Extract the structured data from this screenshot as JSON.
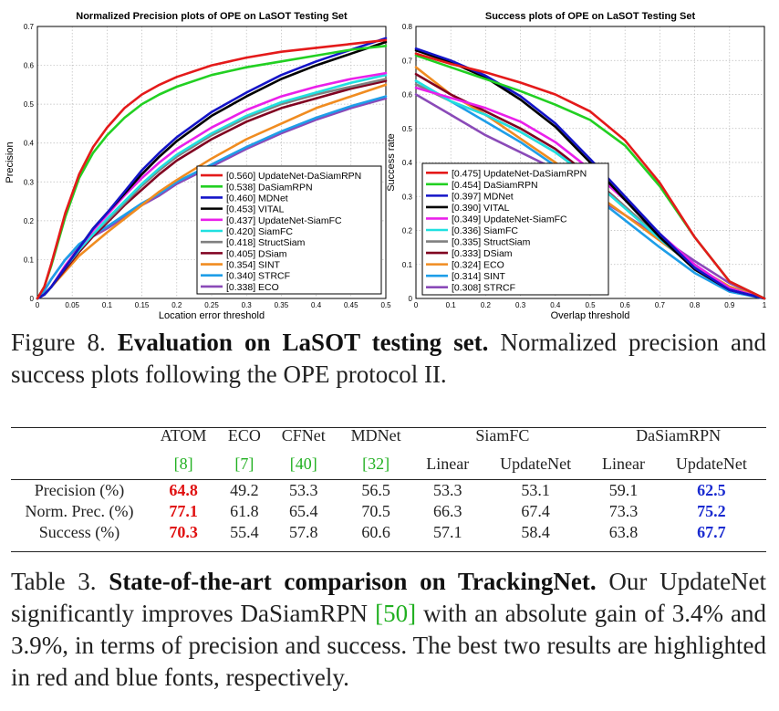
{
  "chart_data": [
    {
      "type": "line",
      "title": "Normalized Precision plots of OPE on LaSOT Testing Set",
      "xlabel": "Location error threshold",
      "ylabel": "Precision",
      "xlim": [
        0,
        0.5
      ],
      "ylim": [
        0,
        0.7
      ],
      "xticks": [
        "0",
        "0.05",
        "0.1",
        "0.15",
        "0.2",
        "0.25",
        "0.3",
        "0.35",
        "0.4",
        "0.45",
        "0.5"
      ],
      "yticks": [
        "0",
        "0.1",
        "0.2",
        "0.3",
        "0.4",
        "0.5",
        "0.6",
        "0.7"
      ],
      "grid": true,
      "legend_position": "bottom-right",
      "x": [
        0,
        0.01,
        0.02,
        0.04,
        0.06,
        0.08,
        0.1,
        0.125,
        0.15,
        0.175,
        0.2,
        0.25,
        0.3,
        0.35,
        0.4,
        0.45,
        0.5
      ],
      "series": [
        {
          "name": "[0.560] UpdateNet-DaSiamRPN",
          "color": "#e41a1a",
          "values": [
            0,
            0.03,
            0.09,
            0.22,
            0.32,
            0.39,
            0.44,
            0.49,
            0.525,
            0.55,
            0.57,
            0.6,
            0.62,
            0.635,
            0.645,
            0.655,
            0.665
          ]
        },
        {
          "name": "[0.538] DaSiamRPN",
          "color": "#22d022",
          "values": [
            0,
            0.03,
            0.085,
            0.21,
            0.31,
            0.375,
            0.42,
            0.465,
            0.5,
            0.525,
            0.545,
            0.575,
            0.595,
            0.61,
            0.625,
            0.64,
            0.65
          ]
        },
        {
          "name": "[0.460] MDNet",
          "color": "#1414c8",
          "values": [
            0,
            0.01,
            0.03,
            0.08,
            0.13,
            0.18,
            0.22,
            0.275,
            0.33,
            0.375,
            0.415,
            0.48,
            0.53,
            0.575,
            0.61,
            0.64,
            0.67
          ]
        },
        {
          "name": "[0.453] VITAL",
          "color": "#000000",
          "values": [
            0,
            0.01,
            0.03,
            0.08,
            0.13,
            0.18,
            0.22,
            0.27,
            0.32,
            0.365,
            0.405,
            0.47,
            0.52,
            0.565,
            0.6,
            0.63,
            0.66
          ]
        },
        {
          "name": "[0.437] UpdateNet-SiamFC",
          "color": "#ea20ea",
          "values": [
            0,
            0.01,
            0.03,
            0.085,
            0.13,
            0.175,
            0.215,
            0.265,
            0.31,
            0.35,
            0.385,
            0.44,
            0.485,
            0.52,
            0.545,
            0.565,
            0.58
          ]
        },
        {
          "name": "[0.420] SiamFC",
          "color": "#20e0e0",
          "values": [
            0,
            0.01,
            0.03,
            0.08,
            0.125,
            0.165,
            0.205,
            0.25,
            0.295,
            0.335,
            0.37,
            0.425,
            0.47,
            0.505,
            0.53,
            0.555,
            0.575
          ]
        },
        {
          "name": "[0.418] StructSiam",
          "color": "#808080",
          "values": [
            0,
            0.01,
            0.03,
            0.08,
            0.125,
            0.165,
            0.2,
            0.245,
            0.29,
            0.33,
            0.365,
            0.42,
            0.465,
            0.5,
            0.525,
            0.545,
            0.565
          ]
        },
        {
          "name": "[0.405] DSiam",
          "color": "#800020",
          "values": [
            0,
            0.01,
            0.03,
            0.075,
            0.12,
            0.16,
            0.195,
            0.24,
            0.28,
            0.32,
            0.355,
            0.41,
            0.455,
            0.49,
            0.515,
            0.54,
            0.56
          ]
        },
        {
          "name": "[0.354] SINT",
          "color": "#f08c20",
          "values": [
            0,
            0.01,
            0.03,
            0.07,
            0.11,
            0.14,
            0.17,
            0.205,
            0.24,
            0.275,
            0.305,
            0.36,
            0.41,
            0.45,
            0.49,
            0.52,
            0.55
          ]
        },
        {
          "name": "[0.340] STRCF",
          "color": "#1e9ee8",
          "values": [
            0,
            0.02,
            0.05,
            0.1,
            0.14,
            0.165,
            0.185,
            0.215,
            0.245,
            0.27,
            0.3,
            0.345,
            0.39,
            0.43,
            0.465,
            0.495,
            0.52
          ]
        },
        {
          "name": "[0.338] ECO",
          "color": "#8a4ab8",
          "values": [
            0,
            0.02,
            0.05,
            0.1,
            0.135,
            0.16,
            0.18,
            0.21,
            0.24,
            0.265,
            0.295,
            0.34,
            0.385,
            0.425,
            0.46,
            0.49,
            0.515
          ]
        }
      ]
    },
    {
      "type": "line",
      "title": "Success plots of OPE on LaSOT Testing Set",
      "xlabel": "Overlap threshold",
      "ylabel": "Success rate",
      "xlim": [
        0,
        1
      ],
      "ylim": [
        0,
        0.8
      ],
      "xticks": [
        "0",
        "0.1",
        "0.2",
        "0.3",
        "0.4",
        "0.5",
        "0.6",
        "0.7",
        "0.8",
        "0.9",
        "1"
      ],
      "yticks": [
        "0",
        "0.1",
        "0.2",
        "0.3",
        "0.4",
        "0.5",
        "0.6",
        "0.7",
        "0.8"
      ],
      "grid": true,
      "legend_position": "bottom-left",
      "x": [
        0,
        0.1,
        0.2,
        0.3,
        0.4,
        0.5,
        0.6,
        0.7,
        0.8,
        0.9,
        1
      ],
      "series": [
        {
          "name": "[0.475] UpdateNet-DaSiamRPN",
          "color": "#e41a1a",
          "values": [
            0.72,
            0.69,
            0.665,
            0.635,
            0.6,
            0.55,
            0.465,
            0.34,
            0.18,
            0.05,
            0
          ]
        },
        {
          "name": "[0.454] DaSiamRPN",
          "color": "#22d022",
          "values": [
            0.715,
            0.68,
            0.645,
            0.61,
            0.57,
            0.525,
            0.45,
            0.33,
            0.18,
            0.05,
            0
          ]
        },
        {
          "name": "[0.397] MDNet",
          "color": "#1414c8",
          "values": [
            0.735,
            0.7,
            0.655,
            0.595,
            0.515,
            0.41,
            0.3,
            0.19,
            0.09,
            0.025,
            0
          ]
        },
        {
          "name": "[0.390] VITAL",
          "color": "#000000",
          "values": [
            0.73,
            0.695,
            0.65,
            0.585,
            0.505,
            0.4,
            0.29,
            0.18,
            0.085,
            0.025,
            0
          ]
        },
        {
          "name": "[0.349] UpdateNet-SiamFC",
          "color": "#ea20ea",
          "values": [
            0.62,
            0.59,
            0.56,
            0.52,
            0.46,
            0.38,
            0.29,
            0.19,
            0.1,
            0.03,
            0
          ]
        },
        {
          "name": "[0.336] SiamFC",
          "color": "#20e0e0",
          "values": [
            0.64,
            0.58,
            0.54,
            0.49,
            0.43,
            0.355,
            0.265,
            0.175,
            0.09,
            0.025,
            0
          ]
        },
        {
          "name": "[0.335] StructSiam",
          "color": "#808080",
          "values": [
            0.63,
            0.58,
            0.54,
            0.49,
            0.43,
            0.355,
            0.27,
            0.18,
            0.095,
            0.03,
            0
          ]
        },
        {
          "name": "[0.333] DSiam",
          "color": "#800020",
          "values": [
            0.66,
            0.6,
            0.55,
            0.5,
            0.44,
            0.36,
            0.27,
            0.175,
            0.09,
            0.025,
            0
          ]
        },
        {
          "name": "[0.324] ECO",
          "color": "#f08c20",
          "values": [
            0.68,
            0.6,
            0.54,
            0.47,
            0.4,
            0.32,
            0.245,
            0.17,
            0.095,
            0.035,
            0
          ]
        },
        {
          "name": "[0.314] SINT",
          "color": "#1e9ee8",
          "values": [
            0.64,
            0.58,
            0.52,
            0.46,
            0.39,
            0.31,
            0.23,
            0.15,
            0.075,
            0.02,
            0
          ]
        },
        {
          "name": "[0.308] STRCF",
          "color": "#8a4ab8",
          "values": [
            0.6,
            0.54,
            0.48,
            0.43,
            0.38,
            0.31,
            0.245,
            0.18,
            0.11,
            0.045,
            0
          ]
        }
      ]
    }
  ],
  "figure_caption": {
    "label": "Figure 8.",
    "bold": "Evaluation on LaSOT testing set.",
    "text": "Normalized precision and success plots following the OPE protocol II."
  },
  "table": {
    "groups": [
      {
        "name": "ATOM",
        "ref": "[8]"
      },
      {
        "name": "ECO",
        "ref": "[7]"
      },
      {
        "name": "CFNet",
        "ref": "[40]"
      },
      {
        "name": "MDNet",
        "ref": "[32]"
      },
      {
        "name": "SiamFC",
        "ref": ""
      },
      {
        "name": "DaSiamRPN",
        "ref": ""
      }
    ],
    "subheaders": [
      "Linear",
      "UpdateNet",
      "Linear",
      "UpdateNet"
    ],
    "rows": [
      {
        "label": "Precision (%)",
        "values": [
          "64.8",
          "49.2",
          "53.3",
          "56.5",
          "53.3",
          "53.1",
          "59.1",
          "62.5"
        ]
      },
      {
        "label": "Norm. Prec. (%)",
        "values": [
          "77.1",
          "61.8",
          "65.4",
          "70.5",
          "66.3",
          "67.4",
          "73.3",
          "75.2"
        ]
      },
      {
        "label": "Success (%)",
        "values": [
          "70.3",
          "55.4",
          "57.8",
          "60.6",
          "57.1",
          "58.4",
          "63.8",
          "67.7"
        ]
      }
    ],
    "best_color": "#e01010",
    "second_color": "#1a2bd0"
  },
  "table_caption": {
    "label": "Table 3.",
    "bold": "State-of-the-art comparison on TrackingNet.",
    "text1": "Our UpdateNet significantly improves DaSiamRPN",
    "ref": "[50]",
    "text2": "with an absolute gain of 3.4% and 3.9%, in terms of precision and success. The best two results are highlighted in red and blue fonts, respectively."
  }
}
